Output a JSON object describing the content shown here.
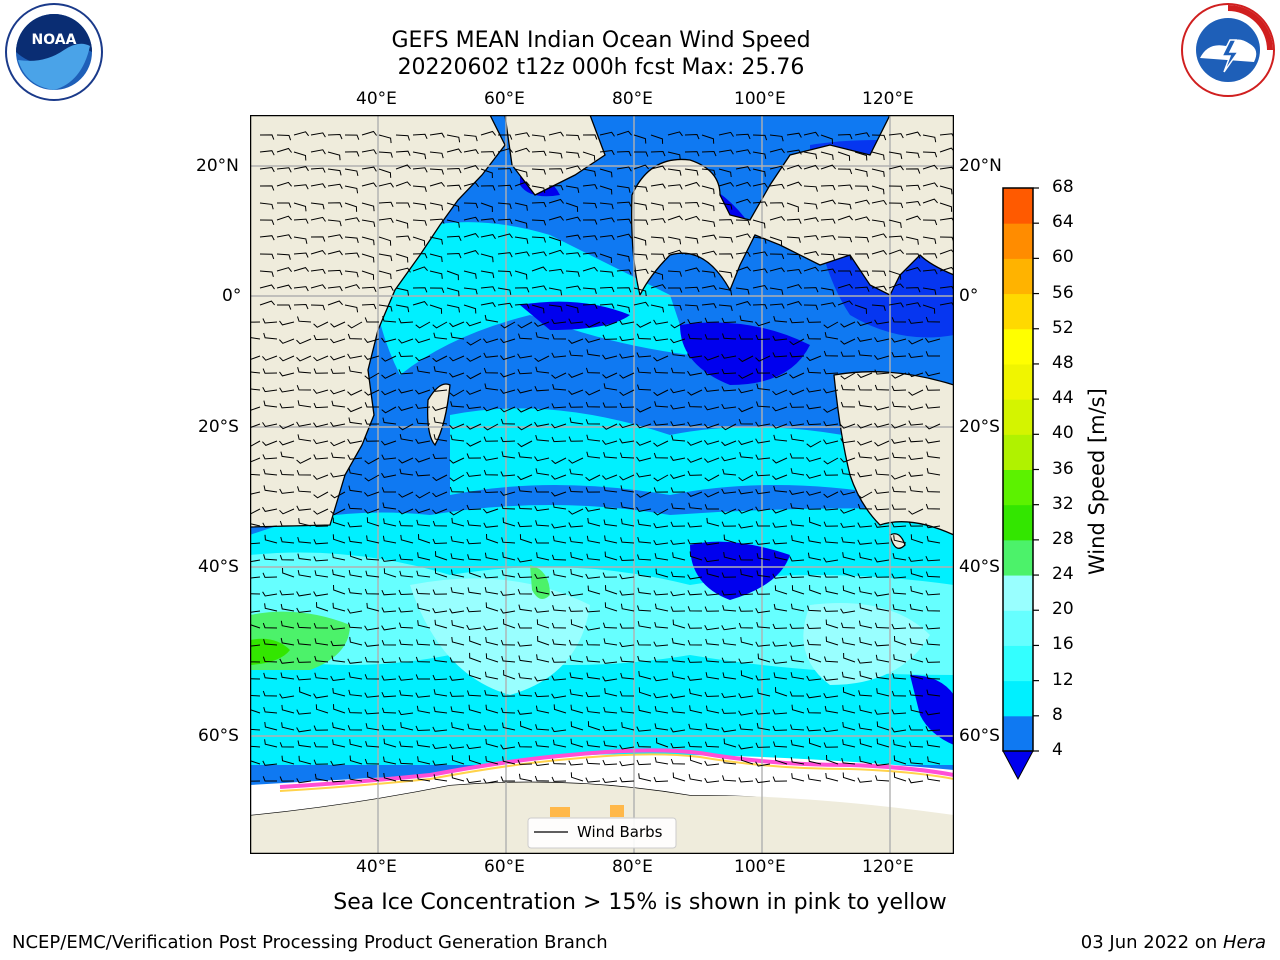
{
  "header": {
    "title_line1": "GEFS MEAN Indian Ocean Wind Speed",
    "title_line2": "20220602 t12z 000h fcst   Max: 25.76"
  },
  "logos": {
    "left": {
      "icon": "noaa-logo-icon",
      "text": "NOAA"
    },
    "right": {
      "icon": "nws-logo-icon",
      "text": "NATIONAL WEATHER SERVICE"
    }
  },
  "map": {
    "lon_labels": [
      "40°E",
      "60°E",
      "80°E",
      "100°E",
      "120°E"
    ],
    "lat_labels": [
      "20°N",
      "0°",
      "20°S",
      "40°S",
      "60°S"
    ],
    "lon_values": [
      40,
      60,
      80,
      100,
      120
    ],
    "lat_values": [
      20,
      0,
      -20,
      -40,
      -60
    ],
    "lon_range": [
      20,
      130
    ],
    "lat_range": [
      -72,
      28
    ],
    "legend_label": "Wind Barbs",
    "colors": {
      "land": "#efecdc",
      "ice": "#ffffff",
      "grid": "#b0b0b0"
    }
  },
  "colorbar": {
    "title": "Wind Speed [m/s]",
    "ticks": [
      "4",
      "8",
      "12",
      "16",
      "20",
      "24",
      "28",
      "32",
      "36",
      "40",
      "44",
      "48",
      "52",
      "56",
      "60",
      "64",
      "68"
    ],
    "colors": [
      "#0f79f2",
      "#00f0ff",
      "#33ffff",
      "#66ffff",
      "#99ffff",
      "#4cf26a",
      "#33e600",
      "#5cf200",
      "#b0f200",
      "#d4f400",
      "#f0f500",
      "#ffff00",
      "#ffd900",
      "#ffb300",
      "#ff8c00",
      "#ff5a00",
      "#ff2a00",
      "#ff0000"
    ],
    "min_color": "#0000ee"
  },
  "footer": {
    "caption": "Sea Ice Concentration > 15% is shown in pink to yellow",
    "left": "NCEP/EMC/Verification Post Processing Product Generation Branch",
    "date": "03 Jun 2022 on ",
    "machine": "Hera"
  }
}
